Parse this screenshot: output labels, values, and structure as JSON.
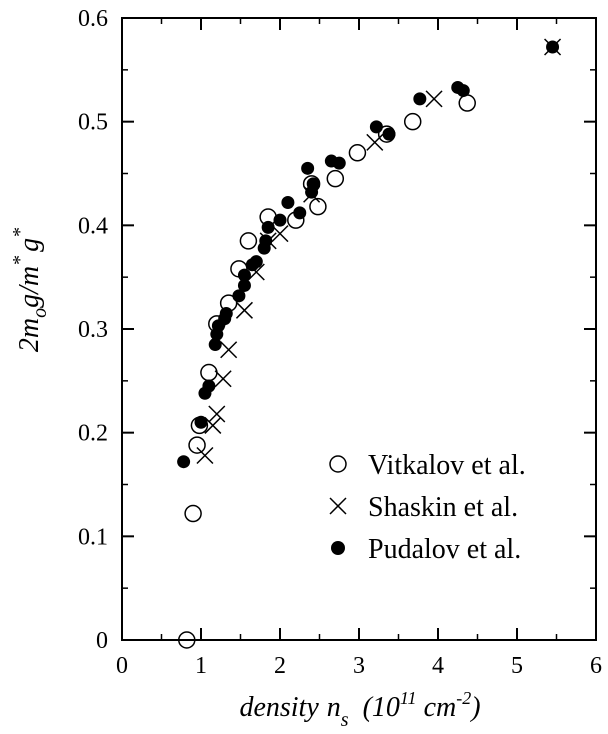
{
  "chart_data": {
    "type": "scatter",
    "title": "",
    "xlabel": {
      "main": "density",
      "var": "n",
      "sub": "s",
      "unit_open": "(10",
      "unit_exp": "11",
      "unit_mid": " cm",
      "unit_exp2": "-2",
      "unit_close": ")"
    },
    "ylabel": {
      "p1": "2m",
      "sub1": "o",
      "p2": "g/m",
      "sup1": "*",
      "p3": "g",
      "sup2": "*"
    },
    "xlim": [
      0,
      6
    ],
    "ylim": [
      0,
      0.6
    ],
    "x_ticks": [
      "0",
      "1",
      "2",
      "3",
      "4",
      "5",
      "6"
    ],
    "y_ticks": [
      "0",
      "0.1",
      "0.2",
      "0.3",
      "0.4",
      "0.5",
      "0.6"
    ],
    "grid": false,
    "legend_position": "bottom-right",
    "series": [
      {
        "name": "Vitkalov et al.",
        "marker": "open-circle",
        "points": [
          [
            0.82,
            0.0
          ],
          [
            0.9,
            0.122
          ],
          [
            0.95,
            0.188
          ],
          [
            0.98,
            0.207
          ],
          [
            1.1,
            0.258
          ],
          [
            1.2,
            0.305
          ],
          [
            1.35,
            0.325
          ],
          [
            1.48,
            0.358
          ],
          [
            1.6,
            0.385
          ],
          [
            1.85,
            0.408
          ],
          [
            2.2,
            0.405
          ],
          [
            2.4,
            0.44
          ],
          [
            2.48,
            0.418
          ],
          [
            2.7,
            0.445
          ],
          [
            2.98,
            0.47
          ],
          [
            3.35,
            0.488
          ],
          [
            3.68,
            0.5
          ],
          [
            4.37,
            0.518
          ]
        ]
      },
      {
        "name": "Shaskin et al.",
        "marker": "cross",
        "points": [
          [
            1.05,
            0.178
          ],
          [
            1.15,
            0.207
          ],
          [
            1.2,
            0.218
          ],
          [
            1.28,
            0.252
          ],
          [
            1.35,
            0.28
          ],
          [
            1.55,
            0.318
          ],
          [
            1.7,
            0.355
          ],
          [
            1.85,
            0.385
          ],
          [
            2.0,
            0.392
          ],
          [
            2.4,
            0.43
          ],
          [
            3.2,
            0.48
          ],
          [
            3.95,
            0.522
          ],
          [
            5.45,
            0.572
          ]
        ]
      },
      {
        "name": "Pudalov et al.",
        "marker": "filled-circle",
        "points": [
          [
            0.78,
            0.172
          ],
          [
            1.0,
            0.21
          ],
          [
            1.05,
            0.238
          ],
          [
            1.1,
            0.245
          ],
          [
            1.18,
            0.285
          ],
          [
            1.2,
            0.295
          ],
          [
            1.22,
            0.303
          ],
          [
            1.3,
            0.31
          ],
          [
            1.32,
            0.315
          ],
          [
            1.48,
            0.332
          ],
          [
            1.55,
            0.342
          ],
          [
            1.55,
            0.352
          ],
          [
            1.65,
            0.362
          ],
          [
            1.7,
            0.365
          ],
          [
            1.8,
            0.378
          ],
          [
            1.82,
            0.385
          ],
          [
            1.85,
            0.398
          ],
          [
            2.0,
            0.405
          ],
          [
            2.1,
            0.422
          ],
          [
            2.25,
            0.412
          ],
          [
            2.35,
            0.455
          ],
          [
            2.4,
            0.432
          ],
          [
            2.42,
            0.44
          ],
          [
            2.65,
            0.462
          ],
          [
            2.75,
            0.46
          ],
          [
            3.22,
            0.495
          ],
          [
            3.38,
            0.488
          ],
          [
            3.77,
            0.522
          ],
          [
            4.25,
            0.533
          ],
          [
            4.32,
            0.53
          ],
          [
            5.45,
            0.572
          ]
        ]
      }
    ]
  }
}
